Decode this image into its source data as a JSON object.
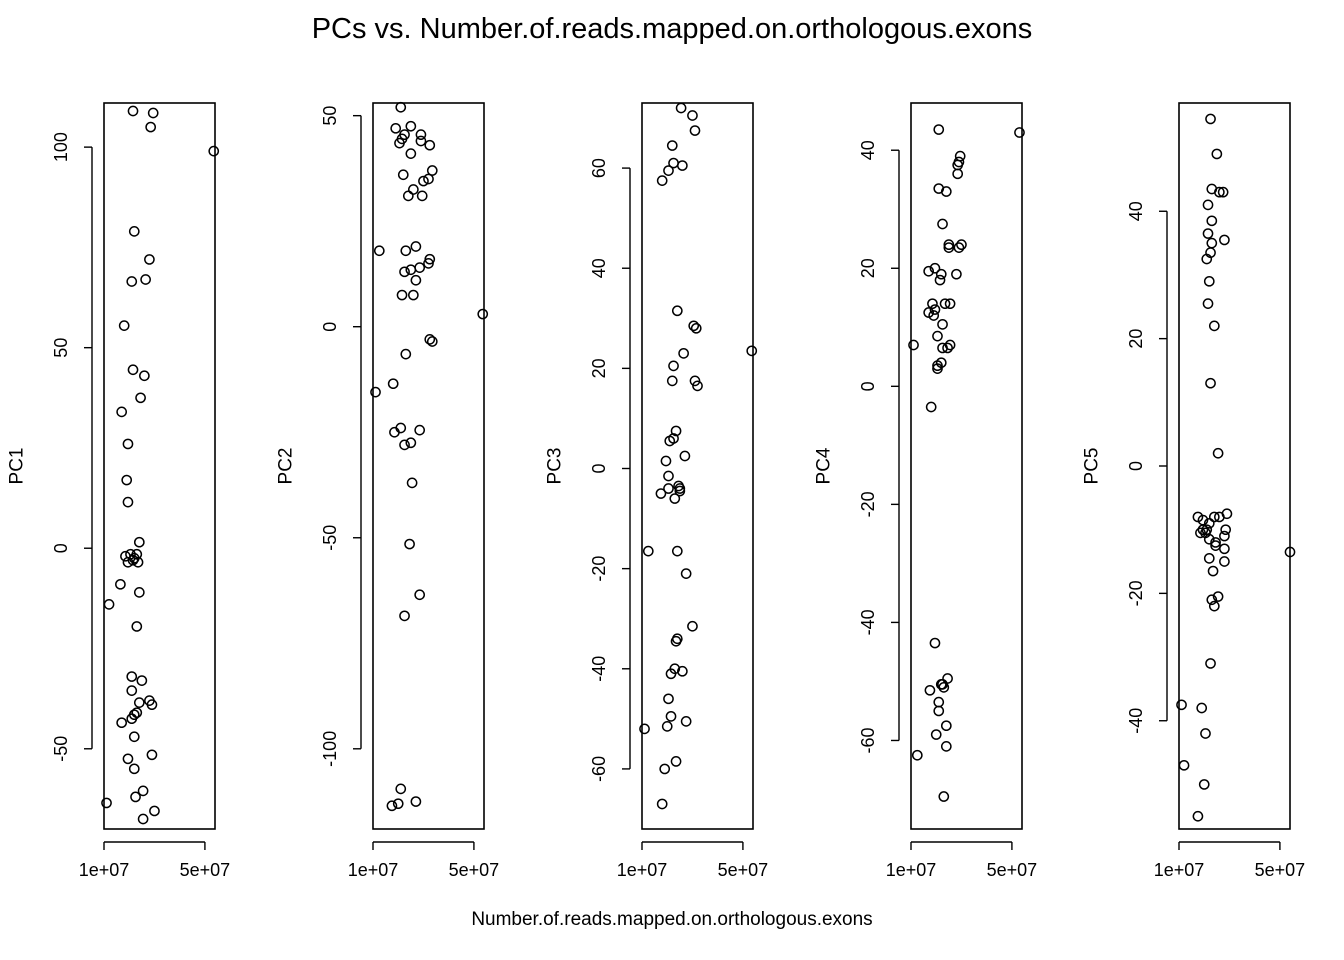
{
  "title": "PCs vs. Number.of.reads.mapped.on.orthologous.exons",
  "xlabel": "Number.of.reads.mapped.on.orthologous.exons",
  "x_tick_labels": [
    "1e+07",
    "5e+07"
  ],
  "chart_data": [
    {
      "type": "scatter",
      "ylabel": "PC1",
      "xlim": [
        10000000,
        54000000
      ],
      "ylim": [
        -70,
        111
      ],
      "yticks": [
        -50,
        0,
        50,
        100
      ],
      "x_tick_values": [
        10000000,
        50000000
      ],
      "points": [
        {
          "x": 11000000.0,
          "y": -63.5
        },
        {
          "x": 12000000.0,
          "y": -14.0
        },
        {
          "x": 16500000.0,
          "y": -9.0
        },
        {
          "x": 17000000.0,
          "y": 34.0
        },
        {
          "x": 17000000.0,
          "y": -43.5
        },
        {
          "x": 18000000.0,
          "y": 55.5
        },
        {
          "x": 18500000.0,
          "y": -2.0
        },
        {
          "x": 19000000.0,
          "y": 17.0
        },
        {
          "x": 19500000.0,
          "y": 26.0
        },
        {
          "x": 19500000.0,
          "y": 11.5
        },
        {
          "x": 19500000.0,
          "y": -3.5
        },
        {
          "x": 19500000.0,
          "y": -52.5
        },
        {
          "x": 20500000.0,
          "y": -1.5
        },
        {
          "x": 21000000.0,
          "y": 66.5
        },
        {
          "x": 21000000.0,
          "y": -32.0
        },
        {
          "x": 21000000.0,
          "y": -35.5
        },
        {
          "x": 21000000.0,
          "y": -42.5
        },
        {
          "x": 21500000.0,
          "y": 109.0
        },
        {
          "x": 21500000.0,
          "y": 44.5
        },
        {
          "x": 21500000.0,
          "y": -3.0
        },
        {
          "x": 22000000.0,
          "y": 79.0
        },
        {
          "x": 22000000.0,
          "y": -2.5
        },
        {
          "x": 22000000.0,
          "y": -41.5
        },
        {
          "x": 22000000.0,
          "y": -47.0
        },
        {
          "x": 22000000.0,
          "y": -55.0
        },
        {
          "x": 22500000.0,
          "y": -62.0
        },
        {
          "x": 23000000.0,
          "y": -1.5
        },
        {
          "x": 23000000.0,
          "y": -19.5
        },
        {
          "x": 23000000.0,
          "y": -41.0
        },
        {
          "x": 23500000.0,
          "y": -3.5
        },
        {
          "x": 24000000.0,
          "y": 1.5
        },
        {
          "x": 24000000.0,
          "y": -11.0
        },
        {
          "x": 24000000.0,
          "y": -38.5
        },
        {
          "x": 24500000.0,
          "y": 37.5
        },
        {
          "x": 25000000.0,
          "y": -33.0
        },
        {
          "x": 25500000.0,
          "y": -60.5
        },
        {
          "x": 25500000.0,
          "y": -67.5
        },
        {
          "x": 26000000.0,
          "y": 43.0
        },
        {
          "x": 26500000.0,
          "y": 67.0
        },
        {
          "x": 28000000.0,
          "y": 72.0
        },
        {
          "x": 28000000.0,
          "y": -38.0
        },
        {
          "x": 28500000.0,
          "y": 105.0
        },
        {
          "x": 29000000.0,
          "y": -39.0
        },
        {
          "x": 29000000.0,
          "y": -51.5
        },
        {
          "x": 29500000.0,
          "y": 108.5
        },
        {
          "x": 30000000.0,
          "y": -65.5
        },
        {
          "x": 53500000.0,
          "y": 99.0
        }
      ]
    },
    {
      "type": "scatter",
      "ylabel": "PC2",
      "xlim": [
        10000000,
        54000000
      ],
      "ylim": [
        -119,
        53
      ],
      "yticks": [
        -100,
        -50,
        0,
        50
      ],
      "x_tick_values": [
        10000000,
        50000000
      ],
      "points": [
        {
          "x": 11000000.0,
          "y": -15.5
        },
        {
          "x": 12500000.0,
          "y": 18.0
        },
        {
          "x": 17500000.0,
          "y": -113.5
        },
        {
          "x": 18000000.0,
          "y": -13.5
        },
        {
          "x": 18500000.0,
          "y": -25.0
        },
        {
          "x": 19000000.0,
          "y": 47.0
        },
        {
          "x": 20000000.0,
          "y": -113.0
        },
        {
          "x": 20500000.0,
          "y": 43.5
        },
        {
          "x": 21000000.0,
          "y": 52.0
        },
        {
          "x": 21000000.0,
          "y": -109.5
        },
        {
          "x": 21000000.0,
          "y": -24.0
        },
        {
          "x": 21500000.0,
          "y": 7.5
        },
        {
          "x": 21500000.0,
          "y": 44.5
        },
        {
          "x": 22000000.0,
          "y": 36.0
        },
        {
          "x": 22500000.0,
          "y": 45.5
        },
        {
          "x": 22500000.0,
          "y": 13.0
        },
        {
          "x": 22500000.0,
          "y": -28.0
        },
        {
          "x": 22500000.0,
          "y": -68.5
        },
        {
          "x": 23000000.0,
          "y": 18.0
        },
        {
          "x": 23000000.0,
          "y": -6.5
        },
        {
          "x": 24000000.0,
          "y": 31.0
        },
        {
          "x": 24500000.0,
          "y": -51.5
        },
        {
          "x": 25000000.0,
          "y": 47.5
        },
        {
          "x": 25000000.0,
          "y": 41.0
        },
        {
          "x": 25000000.0,
          "y": 13.5
        },
        {
          "x": 25000000.0,
          "y": -27.5
        },
        {
          "x": 25500000.0,
          "y": -37.0
        },
        {
          "x": 26000000.0,
          "y": 32.5
        },
        {
          "x": 26000000.0,
          "y": 7.5
        },
        {
          "x": 27000000.0,
          "y": 19.0
        },
        {
          "x": 27000000.0,
          "y": 11.0
        },
        {
          "x": 27000000.0,
          "y": -112.5
        },
        {
          "x": 28500000.0,
          "y": 14.0
        },
        {
          "x": 28500000.0,
          "y": -24.5
        },
        {
          "x": 28500000.0,
          "y": -63.5
        },
        {
          "x": 29000000.0,
          "y": 45.5
        },
        {
          "x": 29000000.0,
          "y": 44.0
        },
        {
          "x": 29500000.0,
          "y": 31.0
        },
        {
          "x": 30000000.0,
          "y": 34.5
        },
        {
          "x": 32000000.0,
          "y": 35.0
        },
        {
          "x": 32000000.0,
          "y": 15.0
        },
        {
          "x": 32500000.0,
          "y": 43.0
        },
        {
          "x": 32500000.0,
          "y": 16.0
        },
        {
          "x": 32500000.0,
          "y": -3.0
        },
        {
          "x": 33500000.0,
          "y": -3.5
        },
        {
          "x": 33500000.0,
          "y": 37.0
        },
        {
          "x": 53500000.0,
          "y": 3.0
        }
      ]
    },
    {
      "type": "scatter",
      "ylabel": "PC3",
      "xlim": [
        10000000,
        54000000
      ],
      "ylim": [
        -72,
        73
      ],
      "yticks": [
        -60,
        -40,
        -20,
        0,
        20,
        40,
        60
      ],
      "x_tick_values": [
        10000000,
        50000000
      ],
      "points": [
        {
          "x": 11000000.0,
          "y": -52.0
        },
        {
          "x": 12500000.0,
          "y": -16.5
        },
        {
          "x": 17500000.0,
          "y": -5.0
        },
        {
          "x": 18000000.0,
          "y": -67.0
        },
        {
          "x": 18000000.0,
          "y": 57.5
        },
        {
          "x": 19000000.0,
          "y": -60.0
        },
        {
          "x": 19500000.0,
          "y": 1.5
        },
        {
          "x": 20000000.0,
          "y": -51.5
        },
        {
          "x": 20500000.0,
          "y": 59.5
        },
        {
          "x": 20500000.0,
          "y": -1.5
        },
        {
          "x": 20500000.0,
          "y": -4.0
        },
        {
          "x": 20500000.0,
          "y": -46.0
        },
        {
          "x": 21000000.0,
          "y": 5.5
        },
        {
          "x": 21500000.0,
          "y": -41.0
        },
        {
          "x": 21500000.0,
          "y": -49.5
        },
        {
          "x": 22000000.0,
          "y": 64.5
        },
        {
          "x": 22000000.0,
          "y": 17.5
        },
        {
          "x": 22500000.0,
          "y": 61.0
        },
        {
          "x": 22500000.0,
          "y": 20.5
        },
        {
          "x": 22500000.0,
          "y": 6.0
        },
        {
          "x": 23000000.0,
          "y": -40.0
        },
        {
          "x": 23000000.0,
          "y": -6.0
        },
        {
          "x": 23500000.0,
          "y": 7.5
        },
        {
          "x": 23500000.0,
          "y": -34.5
        },
        {
          "x": 23500000.0,
          "y": -58.5
        },
        {
          "x": 24000000.0,
          "y": 31.5
        },
        {
          "x": 24000000.0,
          "y": -16.5
        },
        {
          "x": 24000000.0,
          "y": -34.0
        },
        {
          "x": 24500000.0,
          "y": -3.5
        },
        {
          "x": 25000000.0,
          "y": -4.0
        },
        {
          "x": 25000000.0,
          "y": -4.5
        },
        {
          "x": 25500000.0,
          "y": 72.0
        },
        {
          "x": 26000000.0,
          "y": 60.5
        },
        {
          "x": 26000000.0,
          "y": -40.5
        },
        {
          "x": 26500000.0,
          "y": 23.0
        },
        {
          "x": 27000000.0,
          "y": 2.5
        },
        {
          "x": 27500000.0,
          "y": -21.0
        },
        {
          "x": 27500000.0,
          "y": -50.5
        },
        {
          "x": 30000000.0,
          "y": 70.5
        },
        {
          "x": 30000000.0,
          "y": -31.5
        },
        {
          "x": 30500000.0,
          "y": 28.5
        },
        {
          "x": 31000000.0,
          "y": 67.5
        },
        {
          "x": 31000000.0,
          "y": 17.5
        },
        {
          "x": 31500000.0,
          "y": 28.0
        },
        {
          "x": 32000000.0,
          "y": 16.5
        },
        {
          "x": 53500000.0,
          "y": 23.5
        }
      ]
    },
    {
      "type": "scatter",
      "ylabel": "PC4",
      "xlim": [
        10000000,
        54000000
      ],
      "ylim": [
        -75,
        48
      ],
      "yticks": [
        -60,
        -40,
        -20,
        0,
        20,
        40
      ],
      "x_tick_values": [
        10000000,
        50000000
      ],
      "points": [
        {
          "x": 11000000.0,
          "y": 7.0
        },
        {
          "x": 12500000.0,
          "y": -62.5
        },
        {
          "x": 17000000.0,
          "y": 19.5
        },
        {
          "x": 17000000.0,
          "y": 12.5
        },
        {
          "x": 17500000.0,
          "y": -51.5
        },
        {
          "x": 18000000.0,
          "y": -3.5
        },
        {
          "x": 18500000.0,
          "y": 14.0
        },
        {
          "x": 19000000.0,
          "y": 12.0
        },
        {
          "x": 19500000.0,
          "y": 13.0
        },
        {
          "x": 19500000.0,
          "y": 20.0
        },
        {
          "x": 19500000.0,
          "y": -43.5
        },
        {
          "x": 20000000.0,
          "y": -59.0
        },
        {
          "x": 20500000.0,
          "y": 8.5
        },
        {
          "x": 20500000.0,
          "y": 3.0
        },
        {
          "x": 20500000.0,
          "y": 3.5
        },
        {
          "x": 21000000.0,
          "y": 33.5
        },
        {
          "x": 21000000.0,
          "y": -53.5
        },
        {
          "x": 21000000.0,
          "y": -55.0
        },
        {
          "x": 21000000.0,
          "y": 43.5
        },
        {
          "x": 21500000.0,
          "y": 18.0
        },
        {
          "x": 22000000.0,
          "y": 19.0
        },
        {
          "x": 22000000.0,
          "y": 4.0
        },
        {
          "x": 22000000.0,
          "y": -50.5
        },
        {
          "x": 22500000.0,
          "y": 27.5
        },
        {
          "x": 22500000.0,
          "y": 10.5
        },
        {
          "x": 22500000.0,
          "y": 6.5
        },
        {
          "x": 22500000.0,
          "y": -50.5
        },
        {
          "x": 23000000.0,
          "y": -69.5
        },
        {
          "x": 23000000.0,
          "y": -51.0
        },
        {
          "x": 23500000.0,
          "y": 14.0
        },
        {
          "x": 24000000.0,
          "y": 33.0
        },
        {
          "x": 24000000.0,
          "y": -57.5
        },
        {
          "x": 24000000.0,
          "y": -61.0
        },
        {
          "x": 24500000.0,
          "y": 6.5
        },
        {
          "x": 24500000.0,
          "y": -49.5
        },
        {
          "x": 25000000.0,
          "y": 24.0
        },
        {
          "x": 25000000.0,
          "y": 23.5
        },
        {
          "x": 25500000.0,
          "y": 14.0
        },
        {
          "x": 25500000.0,
          "y": 7.0
        },
        {
          "x": 28000000.0,
          "y": 19.0
        },
        {
          "x": 28500000.0,
          "y": 36.0
        },
        {
          "x": 28500000.0,
          "y": 37.5
        },
        {
          "x": 29000000.0,
          "y": 38.0
        },
        {
          "x": 29000000.0,
          "y": 23.5
        },
        {
          "x": 29500000.0,
          "y": 39.0
        },
        {
          "x": 30000000.0,
          "y": 24.0
        },
        {
          "x": 53000000.0,
          "y": 43.0
        }
      ]
    },
    {
      "type": "scatter",
      "ylabel": "PC5",
      "xlim": [
        10000000,
        54000000
      ],
      "ylim": [
        -57,
        57
      ],
      "yticks": [
        -40,
        -20,
        0,
        20,
        40
      ],
      "x_tick_values": [
        10000000,
        50000000
      ],
      "points": [
        {
          "x": 11000000.0,
          "y": -37.5
        },
        {
          "x": 12000000.0,
          "y": -47.0
        },
        {
          "x": 17500000.0,
          "y": -8.0
        },
        {
          "x": 17500000.0,
          "y": -55.0
        },
        {
          "x": 18500000.0,
          "y": -10.5
        },
        {
          "x": 19000000.0,
          "y": -38.0
        },
        {
          "x": 19500000.0,
          "y": -8.5
        },
        {
          "x": 19500000.0,
          "y": -10.0
        },
        {
          "x": 20000000.0,
          "y": -50.0
        },
        {
          "x": 20500000.0,
          "y": -10.5
        },
        {
          "x": 20500000.0,
          "y": -42.0
        },
        {
          "x": 21000000.0,
          "y": 32.5
        },
        {
          "x": 21000000.0,
          "y": -10.0
        },
        {
          "x": 21500000.0,
          "y": 25.5
        },
        {
          "x": 21500000.0,
          "y": 36.5
        },
        {
          "x": 21500000.0,
          "y": 41.0
        },
        {
          "x": 22000000.0,
          "y": 29.0
        },
        {
          "x": 22000000.0,
          "y": -9.0
        },
        {
          "x": 22000000.0,
          "y": -11.5
        },
        {
          "x": 22000000.0,
          "y": -14.5
        },
        {
          "x": 22500000.0,
          "y": 33.5
        },
        {
          "x": 22500000.0,
          "y": 13.0
        },
        {
          "x": 22500000.0,
          "y": 54.5
        },
        {
          "x": 22500000.0,
          "y": -31.0
        },
        {
          "x": 23000000.0,
          "y": 38.5
        },
        {
          "x": 23000000.0,
          "y": 43.5
        },
        {
          "x": 23000000.0,
          "y": 35.0
        },
        {
          "x": 23000000.0,
          "y": -21.0
        },
        {
          "x": 23500000.0,
          "y": -16.5
        },
        {
          "x": 24000000.0,
          "y": -8.0
        },
        {
          "x": 24000000.0,
          "y": -22.0
        },
        {
          "x": 24000000.0,
          "y": 22.0
        },
        {
          "x": 24500000.0,
          "y": -12.0
        },
        {
          "x": 24500000.0,
          "y": -12.5
        },
        {
          "x": 25000000.0,
          "y": 49.0
        },
        {
          "x": 25500000.0,
          "y": 2.0
        },
        {
          "x": 25500000.0,
          "y": -20.5
        },
        {
          "x": 26000000.0,
          "y": 43.0
        },
        {
          "x": 26000000.0,
          "y": -8.0
        },
        {
          "x": 27500000.0,
          "y": 43.0
        },
        {
          "x": 28000000.0,
          "y": 35.5
        },
        {
          "x": 28000000.0,
          "y": -11.0
        },
        {
          "x": 28000000.0,
          "y": -13.0
        },
        {
          "x": 28000000.0,
          "y": -15.0
        },
        {
          "x": 28500000.0,
          "y": -10.0
        },
        {
          "x": 29000000.0,
          "y": -7.5
        },
        {
          "x": 54000000.0,
          "y": -13.5
        }
      ]
    }
  ]
}
